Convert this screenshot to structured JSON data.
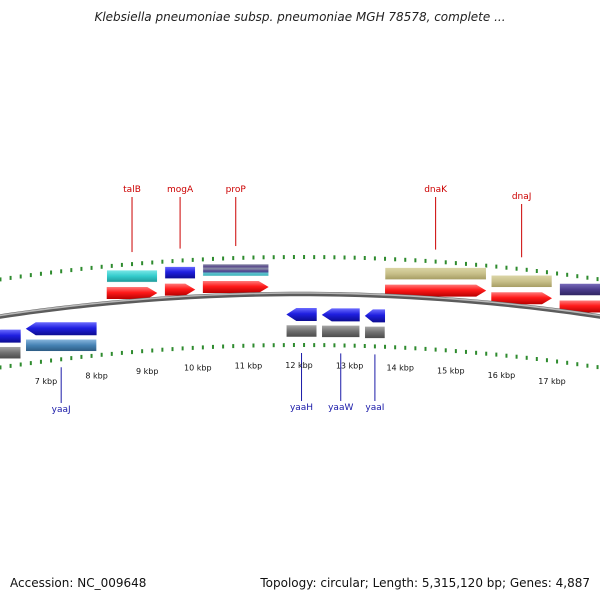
{
  "title": "Klebsiella pneumoniae subsp. pneumoniae MGH 78578, complete ...",
  "footer": {
    "accession": "Accession: NC_009648",
    "summary": "Topology: circular; Length: 5,315,120 bp; Genes: 4,887"
  },
  "colors": {
    "backbone": "#7f7f7f",
    "tick": "#2e8b2e",
    "plus_label": "#cc0000",
    "minus_label": "#1a1aa8",
    "cds_red": "#ff1a1a",
    "gene_cyan": "#33cccc",
    "gene_blue": "#1f1fe0",
    "gene_khaki": "#c8c08a",
    "gene_purple": "#4b3c8c",
    "gene_steel": "#4682b4",
    "gene_grey": "#707070"
  },
  "axis": {
    "unit": "kbp",
    "ticks": [
      7,
      8,
      9,
      10,
      11,
      12,
      13,
      14,
      15,
      16,
      17
    ],
    "tick_labels": [
      "7 kbp",
      "8 kbp",
      "9 kbp",
      "10 kbp",
      "11 kbp",
      "12 kbp",
      "13 kbp",
      "14 kbp",
      "15 kbp",
      "16 kbp",
      "17 kbp"
    ]
  },
  "genes": {
    "plus_labeled": [
      {
        "name": "talB",
        "start_kbp": 8.2,
        "end_kbp": 9.2
      },
      {
        "name": "mogA",
        "start_kbp": 9.35,
        "end_kbp": 9.95
      },
      {
        "name": "proP",
        "start_kbp": 10.1,
        "end_kbp": 11.4
      },
      {
        "name": "dnaK",
        "start_kbp": 13.7,
        "end_kbp": 15.7
      },
      {
        "name": "dnaJ",
        "start_kbp": 15.8,
        "end_kbp": 17.0
      }
    ],
    "minus_labeled": [
      {
        "name": "yaaJ",
        "start_kbp": 6.6,
        "end_kbp": 8.0
      },
      {
        "name": "yaaH",
        "start_kbp": 11.75,
        "end_kbp": 12.35
      },
      {
        "name": "yaaW",
        "start_kbp": 12.45,
        "end_kbp": 13.2
      },
      {
        "name": "yaaI",
        "start_kbp": 13.3,
        "end_kbp": 13.7
      }
    ],
    "plus_feature_rows": [
      {
        "start_kbp": 8.2,
        "end_kbp": 9.2,
        "color": "cyan"
      },
      {
        "start_kbp": 9.35,
        "end_kbp": 9.95,
        "color": "blue"
      },
      {
        "start_kbp": 10.1,
        "end_kbp": 11.4,
        "color": "striped"
      },
      {
        "start_kbp": 13.7,
        "end_kbp": 15.7,
        "color": "khaki"
      },
      {
        "start_kbp": 15.8,
        "end_kbp": 17.0,
        "color": "khaki"
      },
      {
        "start_kbp": 17.15,
        "end_kbp": 18.2,
        "color": "purple"
      }
    ],
    "minus_feature_rows": [
      {
        "start_kbp": 5.9,
        "end_kbp": 6.5,
        "color": "blue"
      },
      {
        "start_kbp": 6.6,
        "end_kbp": 8.0,
        "color": "blue"
      },
      {
        "start_kbp": 11.75,
        "end_kbp": 12.35,
        "color": "blue"
      },
      {
        "start_kbp": 12.45,
        "end_kbp": 13.2,
        "color": "blue"
      },
      {
        "start_kbp": 13.3,
        "end_kbp": 13.7,
        "color": "blue"
      }
    ]
  }
}
